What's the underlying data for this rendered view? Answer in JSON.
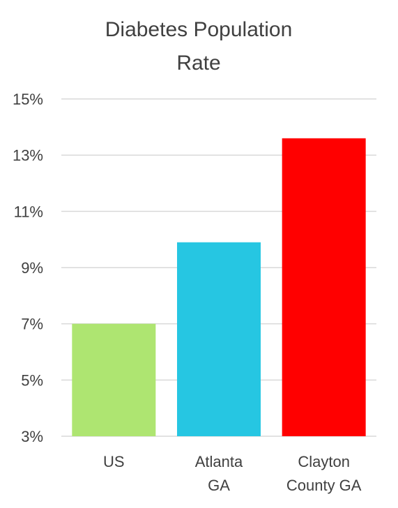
{
  "chart_data": {
    "type": "bar",
    "title_lines": [
      "Diabetes Population",
      "Rate"
    ],
    "categories": [
      {
        "lines": [
          "US"
        ]
      },
      {
        "lines": [
          "Atlanta",
          "GA"
        ]
      },
      {
        "lines": [
          "Clayton",
          "County GA"
        ]
      }
    ],
    "values": [
      7.0,
      9.9,
      13.6
    ],
    "colors": [
      "#aee571",
      "#26c6e2",
      "#ff0000"
    ],
    "ylim": [
      3,
      15
    ],
    "yticks": [
      3,
      5,
      7,
      9,
      11,
      13,
      15
    ],
    "ytick_suffix": "%",
    "grid": true,
    "legend": "none",
    "xlabel": "",
    "ylabel": ""
  }
}
